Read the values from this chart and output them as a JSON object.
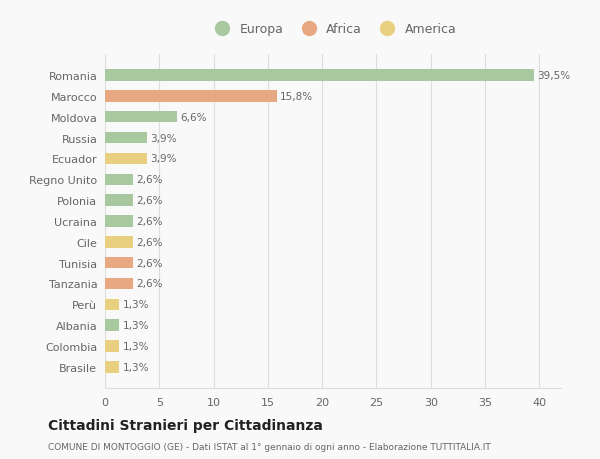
{
  "categories": [
    "Romania",
    "Marocco",
    "Moldova",
    "Russia",
    "Ecuador",
    "Regno Unito",
    "Polonia",
    "Ucraina",
    "Cile",
    "Tunisia",
    "Tanzania",
    "Perù",
    "Albania",
    "Colombia",
    "Brasile"
  ],
  "values": [
    39.5,
    15.8,
    6.6,
    3.9,
    3.9,
    2.6,
    2.6,
    2.6,
    2.6,
    2.6,
    2.6,
    1.3,
    1.3,
    1.3,
    1.3
  ],
  "continents": [
    "Europa",
    "Africa",
    "Europa",
    "Europa",
    "America",
    "Europa",
    "Europa",
    "Europa",
    "America",
    "Africa",
    "Africa",
    "America",
    "Europa",
    "America",
    "America"
  ],
  "colors": {
    "Europa": "#a8c8a0",
    "Africa": "#e8a882",
    "America": "#e8d080"
  },
  "labels": [
    "39,5%",
    "15,8%",
    "6,6%",
    "3,9%",
    "3,9%",
    "2,6%",
    "2,6%",
    "2,6%",
    "2,6%",
    "2,6%",
    "2,6%",
    "1,3%",
    "1,3%",
    "1,3%",
    "1,3%"
  ],
  "xlim": [
    0,
    42
  ],
  "xticks": [
    0,
    5,
    10,
    15,
    20,
    25,
    30,
    35,
    40
  ],
  "title": "Cittadini Stranieri per Cittadinanza",
  "subtitle": "COMUNE DI MONTOGGIO (GE) - Dati ISTAT al 1° gennaio di ogni anno - Elaborazione TUTTITALIA.IT",
  "legend_labels": [
    "Europa",
    "Africa",
    "America"
  ],
  "background_color": "#f9f9f9",
  "grid_color": "#dddddd",
  "bar_height": 0.55,
  "label_fontsize": 7.5,
  "ytick_fontsize": 8,
  "xtick_fontsize": 8,
  "title_fontsize": 10,
  "subtitle_fontsize": 6.5,
  "legend_fontsize": 9
}
